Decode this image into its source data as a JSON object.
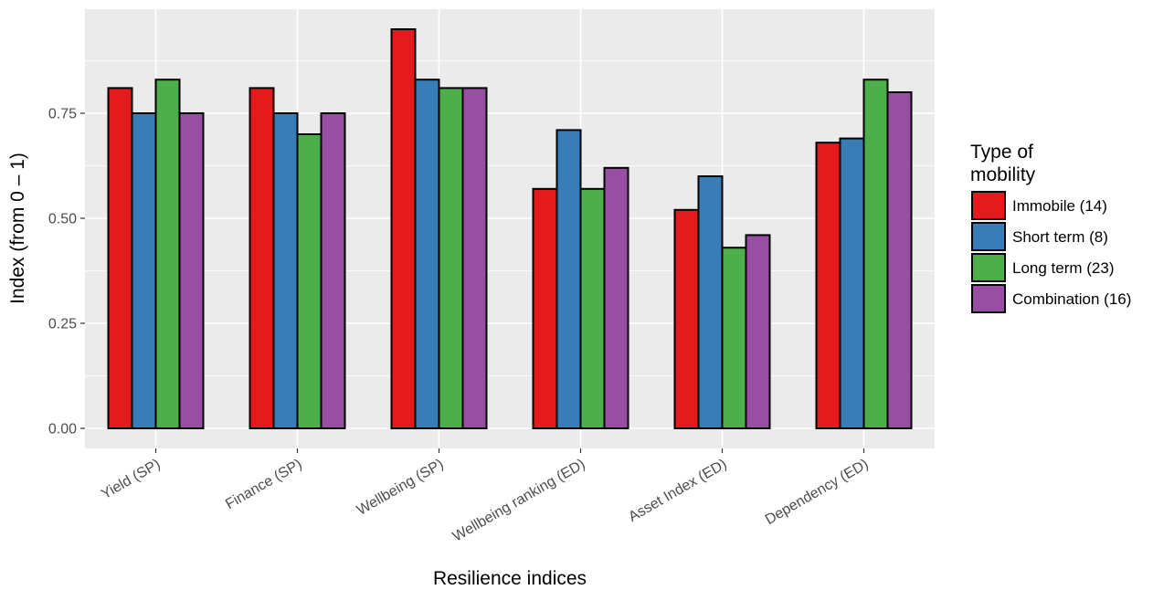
{
  "chart_data": {
    "type": "bar",
    "title": "",
    "xlabel": "Resilience indices",
    "ylabel": "Index (from 0 – 1)",
    "ylim": [
      -0.1,
      0.99
    ],
    "yticks": [
      "0.00",
      "0.25",
      "0.50",
      "0.75"
    ],
    "yticks_values": [
      0,
      0.25,
      0.5,
      0.75
    ],
    "grid": true,
    "categories": [
      "Yield (SP)",
      "Finance (SP)",
      "Wellbeing (SP)",
      "Wellbeing ranking (ED)",
      "Asset Index (ED)",
      "Dependency (ED)"
    ],
    "legend": {
      "title_lines": [
        "Type of",
        "mobility"
      ],
      "placement": "right"
    },
    "series": [
      {
        "name": "Immobile (14)",
        "color": "#e41a1c",
        "values": [
          0.81,
          0.81,
          0.95,
          0.57,
          0.52,
          0.68
        ]
      },
      {
        "name": "Short term (8)",
        "color": "#377eb8",
        "values": [
          0.75,
          0.75,
          0.83,
          0.71,
          0.6,
          0.69
        ]
      },
      {
        "name": "Long term (23)",
        "color": "#4daf4a",
        "values": [
          0.83,
          0.7,
          0.81,
          0.57,
          0.43,
          0.83
        ]
      },
      {
        "name": "Combination (16)",
        "color": "#984ea3",
        "values": [
          0.75,
          0.75,
          0.81,
          0.62,
          0.46,
          0.8
        ]
      }
    ]
  }
}
